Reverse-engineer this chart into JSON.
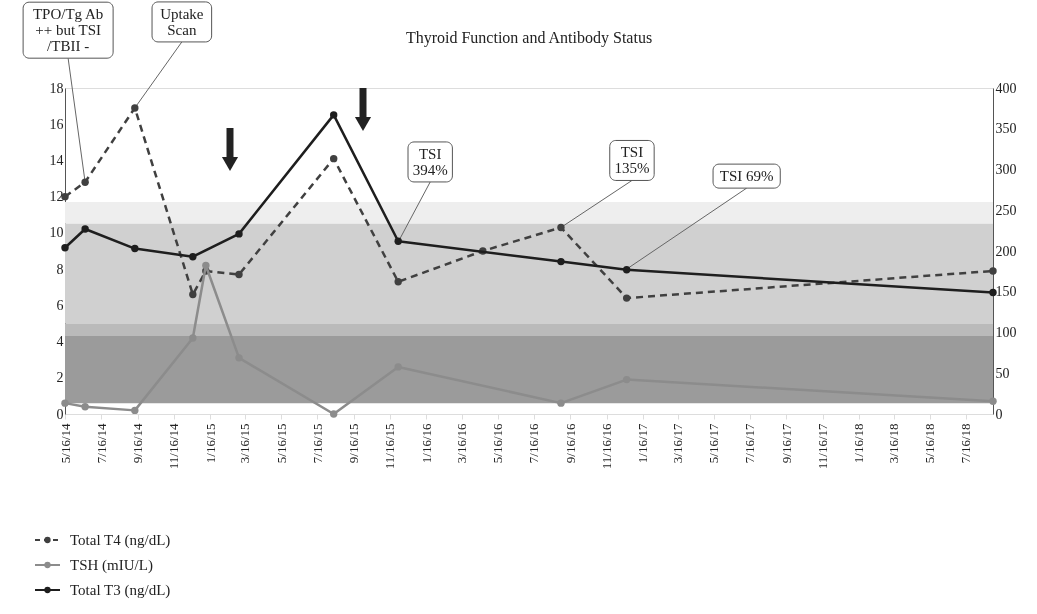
{
  "chart_data": {
    "type": "line",
    "title": "Thyroid Function and Antibody Status",
    "xlim": [
      "2014-05-16",
      "2018-08-31"
    ],
    "xticks": [
      {
        "value": "2014-05-16",
        "label": "5/16/14"
      },
      {
        "value": "2014-07-16",
        "label": "7/16/14"
      },
      {
        "value": "2014-09-16",
        "label": "9/16/14"
      },
      {
        "value": "2014-11-16",
        "label": "11/16/14"
      },
      {
        "value": "2015-01-16",
        "label": "1/16/15"
      },
      {
        "value": "2015-03-16",
        "label": "3/16/15"
      },
      {
        "value": "2015-05-16",
        "label": "5/16/15"
      },
      {
        "value": "2015-07-16",
        "label": "7/16/15"
      },
      {
        "value": "2015-09-16",
        "label": "9/16/15"
      },
      {
        "value": "2015-11-16",
        "label": "11/16/15"
      },
      {
        "value": "2016-01-16",
        "label": "1/16/16"
      },
      {
        "value": "2016-03-16",
        "label": "3/16/16"
      },
      {
        "value": "2016-05-16",
        "label": "5/16/16"
      },
      {
        "value": "2016-07-16",
        "label": "7/16/16"
      },
      {
        "value": "2016-09-16",
        "label": "9/16/16"
      },
      {
        "value": "2016-11-16",
        "label": "11/16/16"
      },
      {
        "value": "2017-01-16",
        "label": "1/16/17"
      },
      {
        "value": "2017-03-16",
        "label": "3/16/17"
      },
      {
        "value": "2017-05-16",
        "label": "5/16/17"
      },
      {
        "value": "2017-07-16",
        "label": "7/16/17"
      },
      {
        "value": "2017-09-16",
        "label": "9/16/17"
      },
      {
        "value": "2017-11-16",
        "label": "11/16/17"
      },
      {
        "value": "2018-01-16",
        "label": "1/16/18"
      },
      {
        "value": "2018-03-16",
        "label": "3/16/18"
      },
      {
        "value": "2018-05-16",
        "label": "5/16/18"
      },
      {
        "value": "2018-07-16",
        "label": "7/16/18"
      }
    ],
    "ylim": [
      0,
      18
    ],
    "yticks": [
      0,
      2,
      4,
      6,
      8,
      10,
      12,
      14,
      16,
      18
    ],
    "y2lim": [
      0,
      400
    ],
    "y2ticks": [
      0,
      50,
      100,
      150,
      200,
      250,
      300,
      350,
      400
    ],
    "series": [
      {
        "name": "Total T4 (ng/dL)",
        "color": "#404040",
        "line_style": "dashed",
        "x": [
          "2014-05-16",
          "2014-06-19",
          "2014-09-11",
          "2014-12-18",
          "2015-01-09",
          "2015-03-06",
          "2015-08-13",
          "2015-11-30",
          "2016-04-21",
          "2016-08-31",
          "2016-12-20",
          "2018-08-31"
        ],
        "values": [
          12.0,
          12.8,
          16.9,
          6.6,
          7.9,
          7.7,
          14.1,
          7.3,
          9.0,
          10.3,
          6.4,
          7.9
        ]
      },
      {
        "name": "TSH (mIU/L)",
        "color": "#8c8c8c",
        "line_style": "solid",
        "x": [
          "2014-05-16",
          "2014-06-19",
          "2014-09-11",
          "2014-12-18",
          "2015-01-09",
          "2015-03-06",
          "2015-08-13",
          "2015-11-30",
          "2016-08-31",
          "2016-12-20",
          "2018-08-31"
        ],
        "values": [
          0.6,
          0.4,
          0.2,
          4.2,
          8.2,
          3.1,
          0.0,
          2.6,
          0.6,
          1.9,
          0.7
        ]
      },
      {
        "name": "Total T3 (ng/dL)",
        "color": "#1e1e1e",
        "line_style": "solid",
        "axis": "y2",
        "x": [
          "2014-05-16",
          "2014-06-19",
          "2014-09-11",
          "2014-12-18",
          "2015-03-06",
          "2015-08-13",
          "2015-11-30",
          "2016-08-31",
          "2016-12-20",
          "2018-08-31"
        ],
        "values": [
          204,
          227,
          203,
          193,
          221,
          367,
          212,
          187,
          177,
          149
        ]
      }
    ],
    "bands": [
      {
        "axis": "y",
        "from": 10.5,
        "to": 11.7,
        "color": "#eeeeee"
      },
      {
        "axis": "y",
        "from": 5.0,
        "to": 10.5,
        "color": "#d0d0d0"
      },
      {
        "axis": "y",
        "from": 4.3,
        "to": 5.0,
        "color": "#bababa"
      },
      {
        "axis": "y",
        "from": 0.6,
        "to": 4.3,
        "color": "#9b9b9b"
      }
    ],
    "annotations": [
      {
        "text": "TPO/Tg Ab\n++ but TSI\n/TBII -",
        "x": "2014-06-19",
        "y": 12.8
      },
      {
        "text": "Uptake\nScan",
        "x": "2014-09-11",
        "y": 16.9
      },
      {
        "text": "TSI\n394%",
        "x": "2015-11-30",
        "y": 9.5
      },
      {
        "text": "TSI\n135%",
        "x": "2016-08-31",
        "y": 10.3
      },
      {
        "text": "TSI 69%",
        "x": "2016-12-20",
        "y": 8.0
      }
    ],
    "marker": "circle",
    "grid": false,
    "legend": "bottom"
  }
}
